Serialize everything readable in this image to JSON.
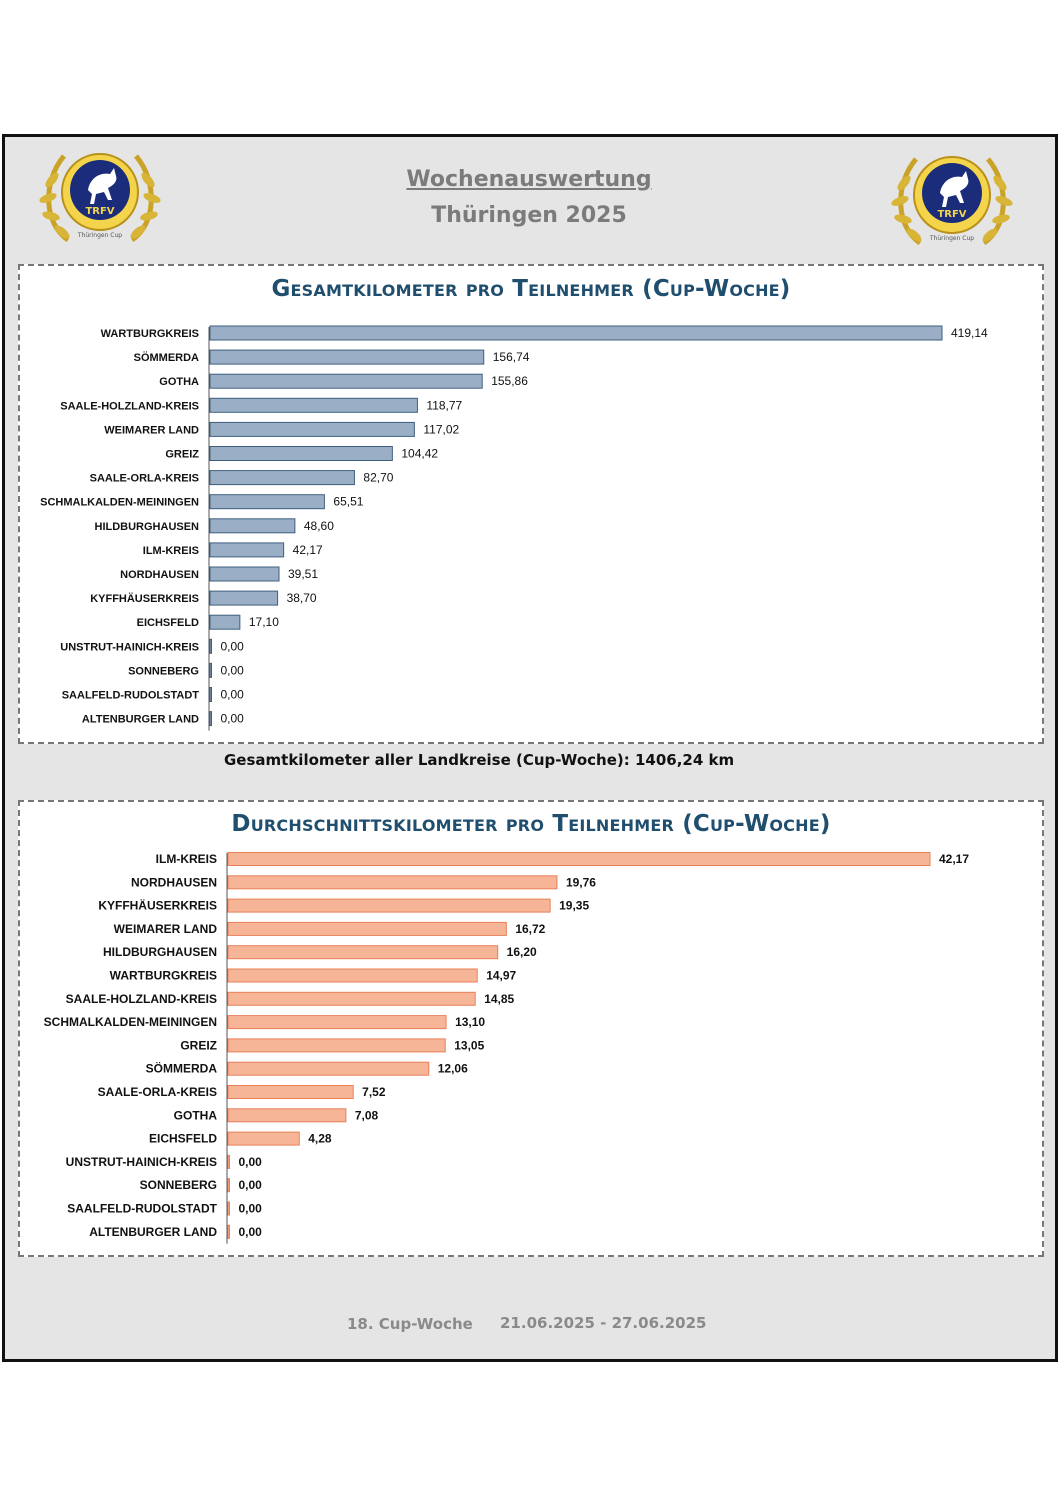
{
  "header": {
    "title": "Wochenauswertung",
    "subtitle": "Thüringen 2025"
  },
  "logo": {
    "text_top": "TRFV",
    "text_bottom": "Thüringen Cup",
    "icon": "horse-wreath-logo"
  },
  "colors": {
    "chart1_bar": "#9aafc6",
    "chart1_bar_stroke": "#3f5f7f",
    "chart2_bar": "#f7b598",
    "chart2_bar_stroke": "#e8805a",
    "title_color": "#1f4e6e"
  },
  "chart_data": [
    {
      "type": "bar",
      "orientation": "horizontal",
      "title": "Gesamtkilometer pro Teilnehmer (Cup-Woche)",
      "categories": [
        "WARTBURGKREIS",
        "SÖMMERDA",
        "GOTHA",
        "SAALE-HOLZLAND-KREIS",
        "WEIMARER LAND",
        "GREIZ",
        "SAALE-ORLA-KREIS",
        "SCHMALKALDEN-MEININGEN",
        "HILDBURGHAUSEN",
        "ILM-KREIS",
        "NORDHAUSEN",
        "KYFFHÄUSERKREIS",
        "EICHSFELD",
        "UNSTRUT-HAINICH-KREIS",
        "SONNEBERG",
        "SAALFELD-RUDOLSTADT",
        "ALTENBURGER LAND"
      ],
      "values": [
        419.14,
        156.74,
        155.86,
        118.77,
        117.02,
        104.42,
        82.7,
        65.51,
        48.6,
        42.17,
        39.51,
        38.7,
        17.1,
        0.0,
        0.0,
        0.0,
        0.0
      ],
      "value_labels": [
        "419,14",
        "156,74",
        "155,86",
        "118,77",
        "117,02",
        "104,42",
        "82,70",
        "65,51",
        "48,60",
        "42,17",
        "39,51",
        "38,70",
        "17,10",
        "0,00",
        "0,00",
        "0,00",
        "0,00"
      ],
      "grid": false,
      "legend": "none"
    },
    {
      "type": "bar",
      "orientation": "horizontal",
      "title": "Durchschnittskilometer pro Teilnehmer (Cup-Woche)",
      "categories": [
        "ILM-KREIS",
        "NORDHAUSEN",
        "KYFFHÄUSERKREIS",
        "WEIMARER LAND",
        "HILDBURGHAUSEN",
        "WARTBURGKREIS",
        "SAALE-HOLZLAND-KREIS",
        "SCHMALKALDEN-MEININGEN",
        "GREIZ",
        "SÖMMERDA",
        "SAALE-ORLA-KREIS",
        "GOTHA",
        "EICHSFELD",
        "UNSTRUT-HAINICH-KREIS",
        "SONNEBERG",
        "SAALFELD-RUDOLSTADT",
        "ALTENBURGER LAND"
      ],
      "values": [
        42.17,
        19.76,
        19.35,
        16.72,
        16.2,
        14.97,
        14.85,
        13.1,
        13.05,
        12.06,
        7.52,
        7.08,
        4.28,
        0.0,
        0.0,
        0.0,
        0.0
      ],
      "value_labels": [
        "42,17",
        "19,76",
        "19,35",
        "16,72",
        "16,20",
        "14,97",
        "14,85",
        "13,10",
        "13,05",
        "12,06",
        "7,52",
        "7,08",
        "4,28",
        "0,00",
        "0,00",
        "0,00",
        "0,00"
      ],
      "grid": false,
      "legend": "none"
    }
  ],
  "summary": {
    "total": "Gesamtkilometer aller Landkreise (Cup-Woche): 1406,24 km"
  },
  "footer": {
    "week": "18. Cup-Woche",
    "dates": "21.06.2025 - 27.06.2025"
  }
}
